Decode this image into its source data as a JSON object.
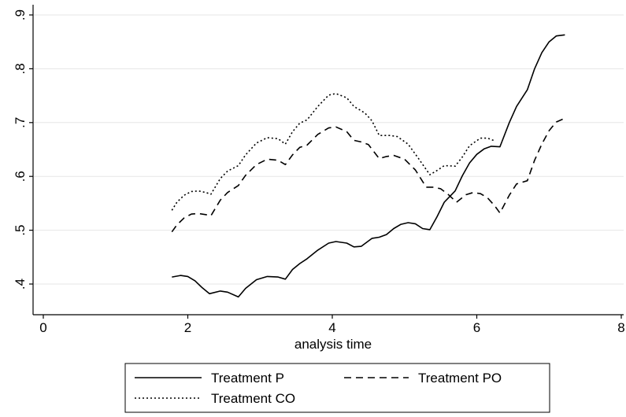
{
  "chart_data": {
    "type": "line",
    "title": "",
    "xlabel": "analysis time",
    "ylabel": "",
    "xlim": [
      0,
      8
    ],
    "ylim": [
      0.375,
      0.92
    ],
    "xticks": [
      0,
      2,
      4,
      6,
      8
    ],
    "xtick_labels": [
      "0",
      "2",
      "4",
      "6",
      "8"
    ],
    "yticks": [
      0.4,
      0.5,
      0.6,
      0.7,
      0.8,
      0.9
    ],
    "ytick_labels": [
      ".4",
      ".5",
      ".6",
      ".7",
      ".8",
      ".9"
    ],
    "grid": "horizontal",
    "legend_position": "bottom",
    "series": [
      {
        "name": "Treatment P",
        "style": "solid",
        "points": [
          [
            1.78,
            0.413
          ],
          [
            1.9,
            0.416
          ],
          [
            2.0,
            0.414
          ],
          [
            2.1,
            0.406
          ],
          [
            2.2,
            0.393
          ],
          [
            2.3,
            0.382
          ],
          [
            2.45,
            0.387
          ],
          [
            2.55,
            0.385
          ],
          [
            2.7,
            0.376
          ],
          [
            2.8,
            0.392
          ],
          [
            2.95,
            0.408
          ],
          [
            3.1,
            0.414
          ],
          [
            3.25,
            0.413
          ],
          [
            3.35,
            0.409
          ],
          [
            3.45,
            0.427
          ],
          [
            3.55,
            0.438
          ],
          [
            3.65,
            0.447
          ],
          [
            3.8,
            0.463
          ],
          [
            3.95,
            0.476
          ],
          [
            4.05,
            0.479
          ],
          [
            4.2,
            0.476
          ],
          [
            4.3,
            0.469
          ],
          [
            4.4,
            0.47
          ],
          [
            4.55,
            0.485
          ],
          [
            4.65,
            0.487
          ],
          [
            4.75,
            0.492
          ],
          [
            4.85,
            0.503
          ],
          [
            4.95,
            0.511
          ],
          [
            5.05,
            0.514
          ],
          [
            5.15,
            0.512
          ],
          [
            5.25,
            0.503
          ],
          [
            5.35,
            0.501
          ],
          [
            5.45,
            0.525
          ],
          [
            5.55,
            0.552
          ],
          [
            5.7,
            0.573
          ],
          [
            5.8,
            0.601
          ],
          [
            5.9,
            0.625
          ],
          [
            6.0,
            0.641
          ],
          [
            6.1,
            0.651
          ],
          [
            6.2,
            0.656
          ],
          [
            6.32,
            0.655
          ],
          [
            6.45,
            0.7
          ],
          [
            6.55,
            0.73
          ],
          [
            6.7,
            0.761
          ],
          [
            6.8,
            0.8
          ],
          [
            6.9,
            0.83
          ],
          [
            7.0,
            0.85
          ],
          [
            7.1,
            0.861
          ],
          [
            7.22,
            0.863
          ]
        ]
      },
      {
        "name": "Treatment PO",
        "style": "dashed",
        "points": [
          [
            1.78,
            0.497
          ],
          [
            1.85,
            0.51
          ],
          [
            1.95,
            0.523
          ],
          [
            2.05,
            0.53
          ],
          [
            2.15,
            0.531
          ],
          [
            2.25,
            0.529
          ],
          [
            2.32,
            0.527
          ],
          [
            2.45,
            0.556
          ],
          [
            2.55,
            0.57
          ],
          [
            2.7,
            0.583
          ],
          [
            2.8,
            0.602
          ],
          [
            2.95,
            0.622
          ],
          [
            3.1,
            0.632
          ],
          [
            3.25,
            0.63
          ],
          [
            3.35,
            0.622
          ],
          [
            3.45,
            0.64
          ],
          [
            3.55,
            0.654
          ],
          [
            3.65,
            0.658
          ],
          [
            3.8,
            0.678
          ],
          [
            3.95,
            0.69
          ],
          [
            4.05,
            0.692
          ],
          [
            4.2,
            0.683
          ],
          [
            4.3,
            0.667
          ],
          [
            4.4,
            0.664
          ],
          [
            4.5,
            0.659
          ],
          [
            4.65,
            0.633
          ],
          [
            4.75,
            0.637
          ],
          [
            4.85,
            0.639
          ],
          [
            5.0,
            0.632
          ],
          [
            5.15,
            0.612
          ],
          [
            5.3,
            0.58
          ],
          [
            5.4,
            0.58
          ],
          [
            5.5,
            0.577
          ],
          [
            5.6,
            0.567
          ],
          [
            5.72,
            0.552
          ],
          [
            5.85,
            0.566
          ],
          [
            5.95,
            0.57
          ],
          [
            6.05,
            0.568
          ],
          [
            6.15,
            0.56
          ],
          [
            6.25,
            0.545
          ],
          [
            6.32,
            0.532
          ],
          [
            6.45,
            0.565
          ],
          [
            6.55,
            0.586
          ],
          [
            6.7,
            0.592
          ],
          [
            6.8,
            0.63
          ],
          [
            6.9,
            0.66
          ],
          [
            7.0,
            0.685
          ],
          [
            7.1,
            0.701
          ],
          [
            7.22,
            0.708
          ]
        ]
      },
      {
        "name": "Treatment CO",
        "style": "dotted",
        "points": [
          [
            1.78,
            0.537
          ],
          [
            1.85,
            0.552
          ],
          [
            1.95,
            0.565
          ],
          [
            2.05,
            0.572
          ],
          [
            2.15,
            0.573
          ],
          [
            2.25,
            0.57
          ],
          [
            2.32,
            0.567
          ],
          [
            2.45,
            0.596
          ],
          [
            2.55,
            0.61
          ],
          [
            2.7,
            0.62
          ],
          [
            2.8,
            0.64
          ],
          [
            2.95,
            0.662
          ],
          [
            3.1,
            0.672
          ],
          [
            3.25,
            0.67
          ],
          [
            3.35,
            0.66
          ],
          [
            3.45,
            0.683
          ],
          [
            3.55,
            0.699
          ],
          [
            3.65,
            0.705
          ],
          [
            3.8,
            0.73
          ],
          [
            3.95,
            0.751
          ],
          [
            4.05,
            0.754
          ],
          [
            4.2,
            0.746
          ],
          [
            4.3,
            0.73
          ],
          [
            4.45,
            0.718
          ],
          [
            4.55,
            0.703
          ],
          [
            4.65,
            0.676
          ],
          [
            4.8,
            0.676
          ],
          [
            4.9,
            0.674
          ],
          [
            5.05,
            0.66
          ],
          [
            5.2,
            0.632
          ],
          [
            5.35,
            0.603
          ],
          [
            5.45,
            0.611
          ],
          [
            5.55,
            0.62
          ],
          [
            5.7,
            0.619
          ],
          [
            5.8,
            0.636
          ],
          [
            5.9,
            0.657
          ],
          [
            6.05,
            0.671
          ],
          [
            6.15,
            0.671
          ],
          [
            6.25,
            0.666
          ]
        ]
      }
    ]
  }
}
